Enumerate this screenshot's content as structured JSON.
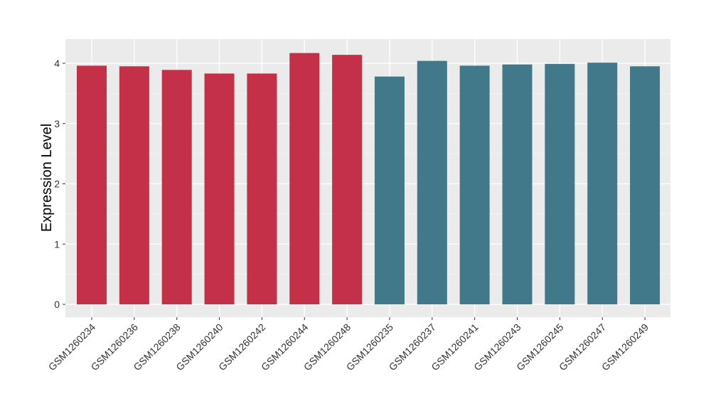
{
  "chart_data": {
    "type": "bar",
    "title": "",
    "xlabel": "",
    "ylabel": "Expression Level",
    "ylim": [
      0,
      4.3
    ],
    "yticks": [
      0,
      1,
      2,
      3,
      4
    ],
    "grid": true,
    "categories": [
      "GSM1260234",
      "GSM1260236",
      "GSM1260238",
      "GSM1260240",
      "GSM1260242",
      "GSM1260244",
      "GSM1260248",
      "GSM1260235",
      "GSM1260237",
      "GSM1260241",
      "GSM1260243",
      "GSM1260245",
      "GSM1260247",
      "GSM1260249"
    ],
    "values": [
      3.96,
      3.95,
      3.89,
      3.83,
      3.83,
      4.17,
      4.14,
      3.78,
      4.04,
      3.96,
      3.98,
      3.99,
      4.01,
      3.95
    ],
    "groups": [
      "a",
      "a",
      "a",
      "a",
      "a",
      "a",
      "a",
      "b",
      "b",
      "b",
      "b",
      "b",
      "b",
      "b"
    ],
    "group_colors": {
      "a": "#C33048",
      "b": "#41798A"
    }
  }
}
